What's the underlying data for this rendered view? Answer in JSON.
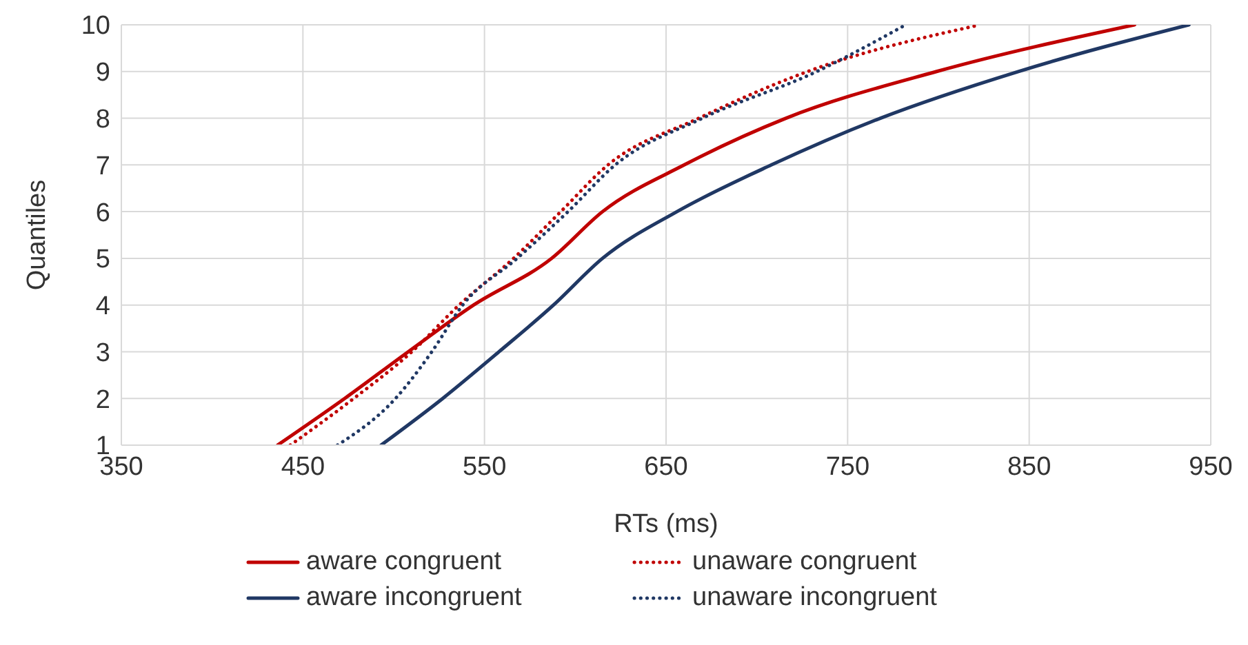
{
  "chart_data": {
    "type": "line",
    "xlabel": "RTs (ms)",
    "ylabel": "Quantiles",
    "xlim": [
      350,
      950
    ],
    "xticks": [
      350,
      450,
      550,
      650,
      750,
      850,
      950
    ],
    "ylim": [
      1,
      10
    ],
    "yticks": [
      1,
      2,
      3,
      4,
      5,
      6,
      7,
      8,
      9,
      10
    ],
    "grid": true,
    "legend": "bottom",
    "marker": "none",
    "series": [
      {
        "name": "aware congruent",
        "color": "#c00000",
        "line_style": "solid",
        "x": [
          436,
          473,
          508,
          544,
          587,
          615,
          660,
          716,
          799,
          908
        ],
        "values": [
          1,
          2,
          3,
          4,
          5,
          6,
          7,
          8,
          9,
          10
        ]
      },
      {
        "name": "unaware congruent",
        "color": "#c00000",
        "line_style": "dotted",
        "x": [
          443,
          478,
          510,
          536,
          566,
          592,
          618,
          668,
          728,
          823
        ],
        "values": [
          1,
          2,
          3,
          4,
          5,
          6,
          7,
          8,
          9,
          10
        ]
      },
      {
        "name": "aware incongruent",
        "color": "#203864",
        "line_style": "solid",
        "x": [
          493,
          527,
          558,
          588,
          615,
          656,
          708,
          768,
          844,
          938
        ],
        "values": [
          1,
          2,
          3,
          4,
          5,
          6,
          7,
          8,
          9,
          10
        ]
      },
      {
        "name": "unaware incongruent",
        "color": "#203864",
        "line_style": "dotted",
        "x": [
          469,
          501,
          521,
          538,
          568,
          596,
          622,
          670,
          733,
          782
        ],
        "values": [
          1,
          2,
          3,
          4,
          5,
          6,
          7,
          8,
          9,
          10
        ]
      }
    ]
  }
}
